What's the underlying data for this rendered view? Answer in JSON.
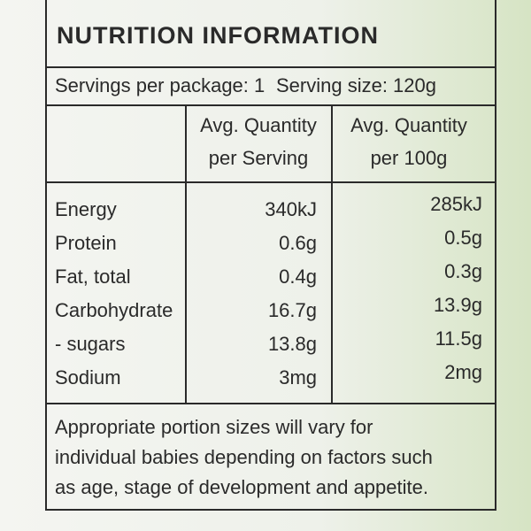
{
  "header": {
    "title": "NUTRITION INFORMATION",
    "servings_per_package": "Servings per package: 1",
    "serving_size": "Serving size: 120g"
  },
  "table": {
    "columns": [
      {
        "line1": "Avg. Quantity",
        "line2": "per Serving"
      },
      {
        "line1": "Avg. Quantity",
        "line2": "per 100g"
      }
    ],
    "rows": [
      [
        "Energy",
        "340kJ",
        "285kJ"
      ],
      [
        "Protein",
        "0.6g",
        "0.5g"
      ],
      [
        "Fat, total",
        "0.4g",
        "0.3g"
      ],
      [
        "Carbohydrate",
        "16.7g",
        "13.9g"
      ],
      [
        "- sugars",
        "13.8g",
        "11.5g"
      ],
      [
        "Sodium",
        "3mg",
        "2mg"
      ]
    ]
  },
  "footnote": [
    "Appropriate portion sizes will vary for",
    "individual babies depending on factors such",
    "as age, stage of development and appetite."
  ]
}
